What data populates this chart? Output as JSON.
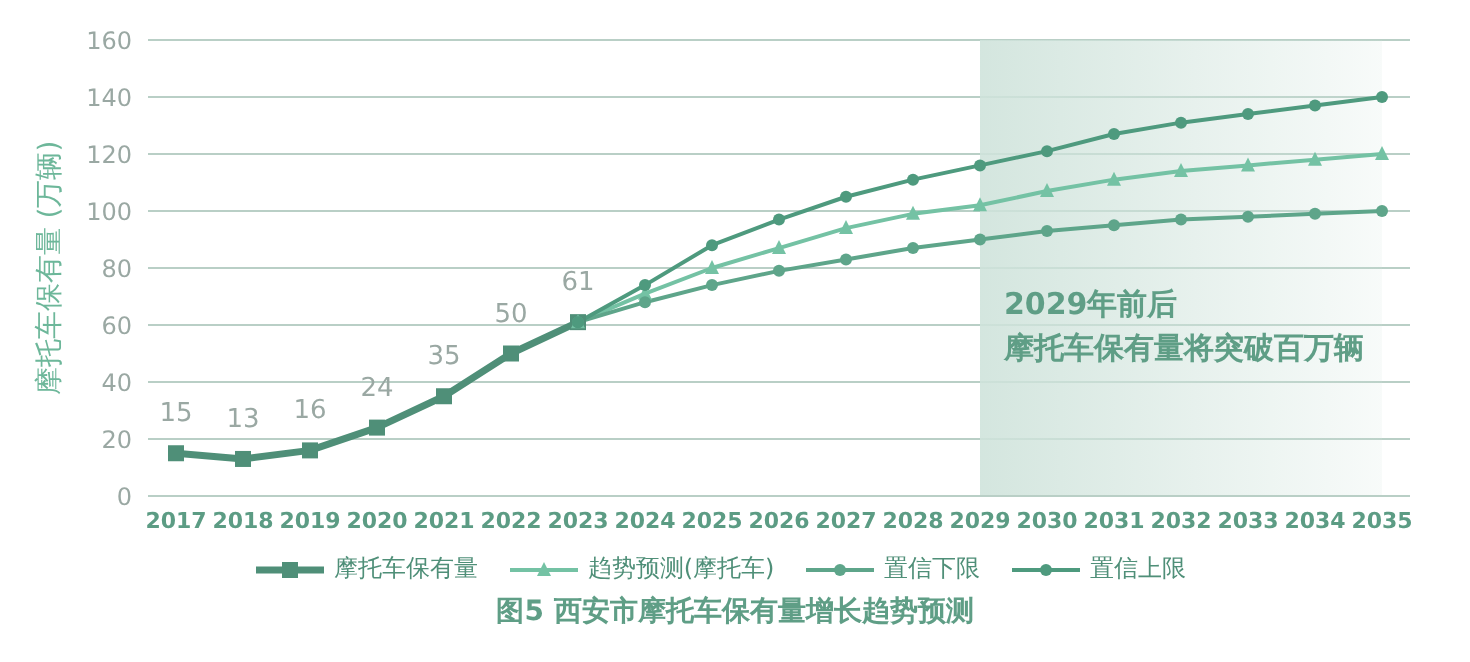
{
  "chart_data": {
    "type": "line",
    "title": "图5 西安市摩托车保有量增长趋势预测",
    "ylabel": "摩托车保有量 (万辆)",
    "categories": [
      "2017",
      "2018",
      "2019",
      "2020",
      "2021",
      "2022",
      "2023",
      "2024",
      "2025",
      "2026",
      "2027",
      "2028",
      "2029",
      "2030",
      "2031",
      "2032",
      "2033",
      "2034",
      "2035"
    ],
    "series": [
      {
        "name": "摩托车保有量",
        "color": "#4f8f78",
        "marker": "square",
        "values": [
          15,
          13,
          16,
          24,
          35,
          50,
          61,
          null,
          null,
          null,
          null,
          null,
          null,
          null,
          null,
          null,
          null,
          null,
          null
        ],
        "value_labels": [
          "15",
          "13",
          "16",
          "24",
          "35",
          "50",
          "61",
          null,
          null,
          null,
          null,
          null,
          null,
          null,
          null,
          null,
          null,
          null,
          null
        ]
      },
      {
        "name": "趋势预测(摩托车)",
        "color": "#74c2a4",
        "marker": "triangle",
        "values": [
          null,
          null,
          null,
          null,
          null,
          null,
          61,
          71,
          80,
          87,
          94,
          99,
          102,
          107,
          111,
          114,
          116,
          118,
          120
        ]
      },
      {
        "name": "置信下限",
        "color": "#5ea58a",
        "marker": "circle",
        "values": [
          null,
          null,
          null,
          null,
          null,
          null,
          61,
          68,
          74,
          79,
          83,
          87,
          90,
          93,
          95,
          97,
          98,
          99,
          100
        ]
      },
      {
        "name": "置信上限",
        "color": "#4e9a7e",
        "marker": "circle",
        "values": [
          null,
          null,
          null,
          null,
          null,
          null,
          61,
          74,
          88,
          97,
          105,
          111,
          116,
          121,
          127,
          131,
          134,
          137,
          140
        ]
      }
    ],
    "ylim": [
      0,
      160
    ],
    "yticks": [
      0,
      20,
      40,
      60,
      80,
      100,
      120,
      140,
      160
    ],
    "grid": "y",
    "legend": "bottom",
    "bands": [
      {
        "axis": "x",
        "from": "2029",
        "to": "2035",
        "color": "#cfe3db"
      }
    ],
    "annotations": [
      "2029年前后",
      "摩托车保有量将突破百万辆"
    ]
  }
}
